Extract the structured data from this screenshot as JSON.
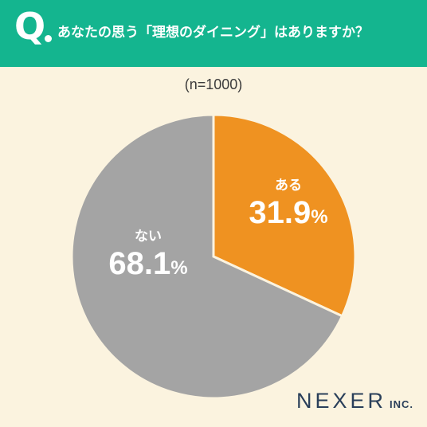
{
  "header": {
    "q_mark": "Q",
    "question": "あなたの思う「理想のダイニング」はありますか？"
  },
  "sample_label": "(n=1000)",
  "chart_data": {
    "type": "pie",
    "categories": [
      "ある",
      "ない"
    ],
    "values": [
      31.9,
      68.1
    ],
    "value_labels": [
      "31.9",
      "68.1"
    ],
    "unit": "%",
    "colors": [
      "#ef9221",
      "#a4a4a4"
    ],
    "start": "top",
    "direction": "clockwise"
  },
  "brand": {
    "main": "NEXER",
    "sub": "INC."
  }
}
